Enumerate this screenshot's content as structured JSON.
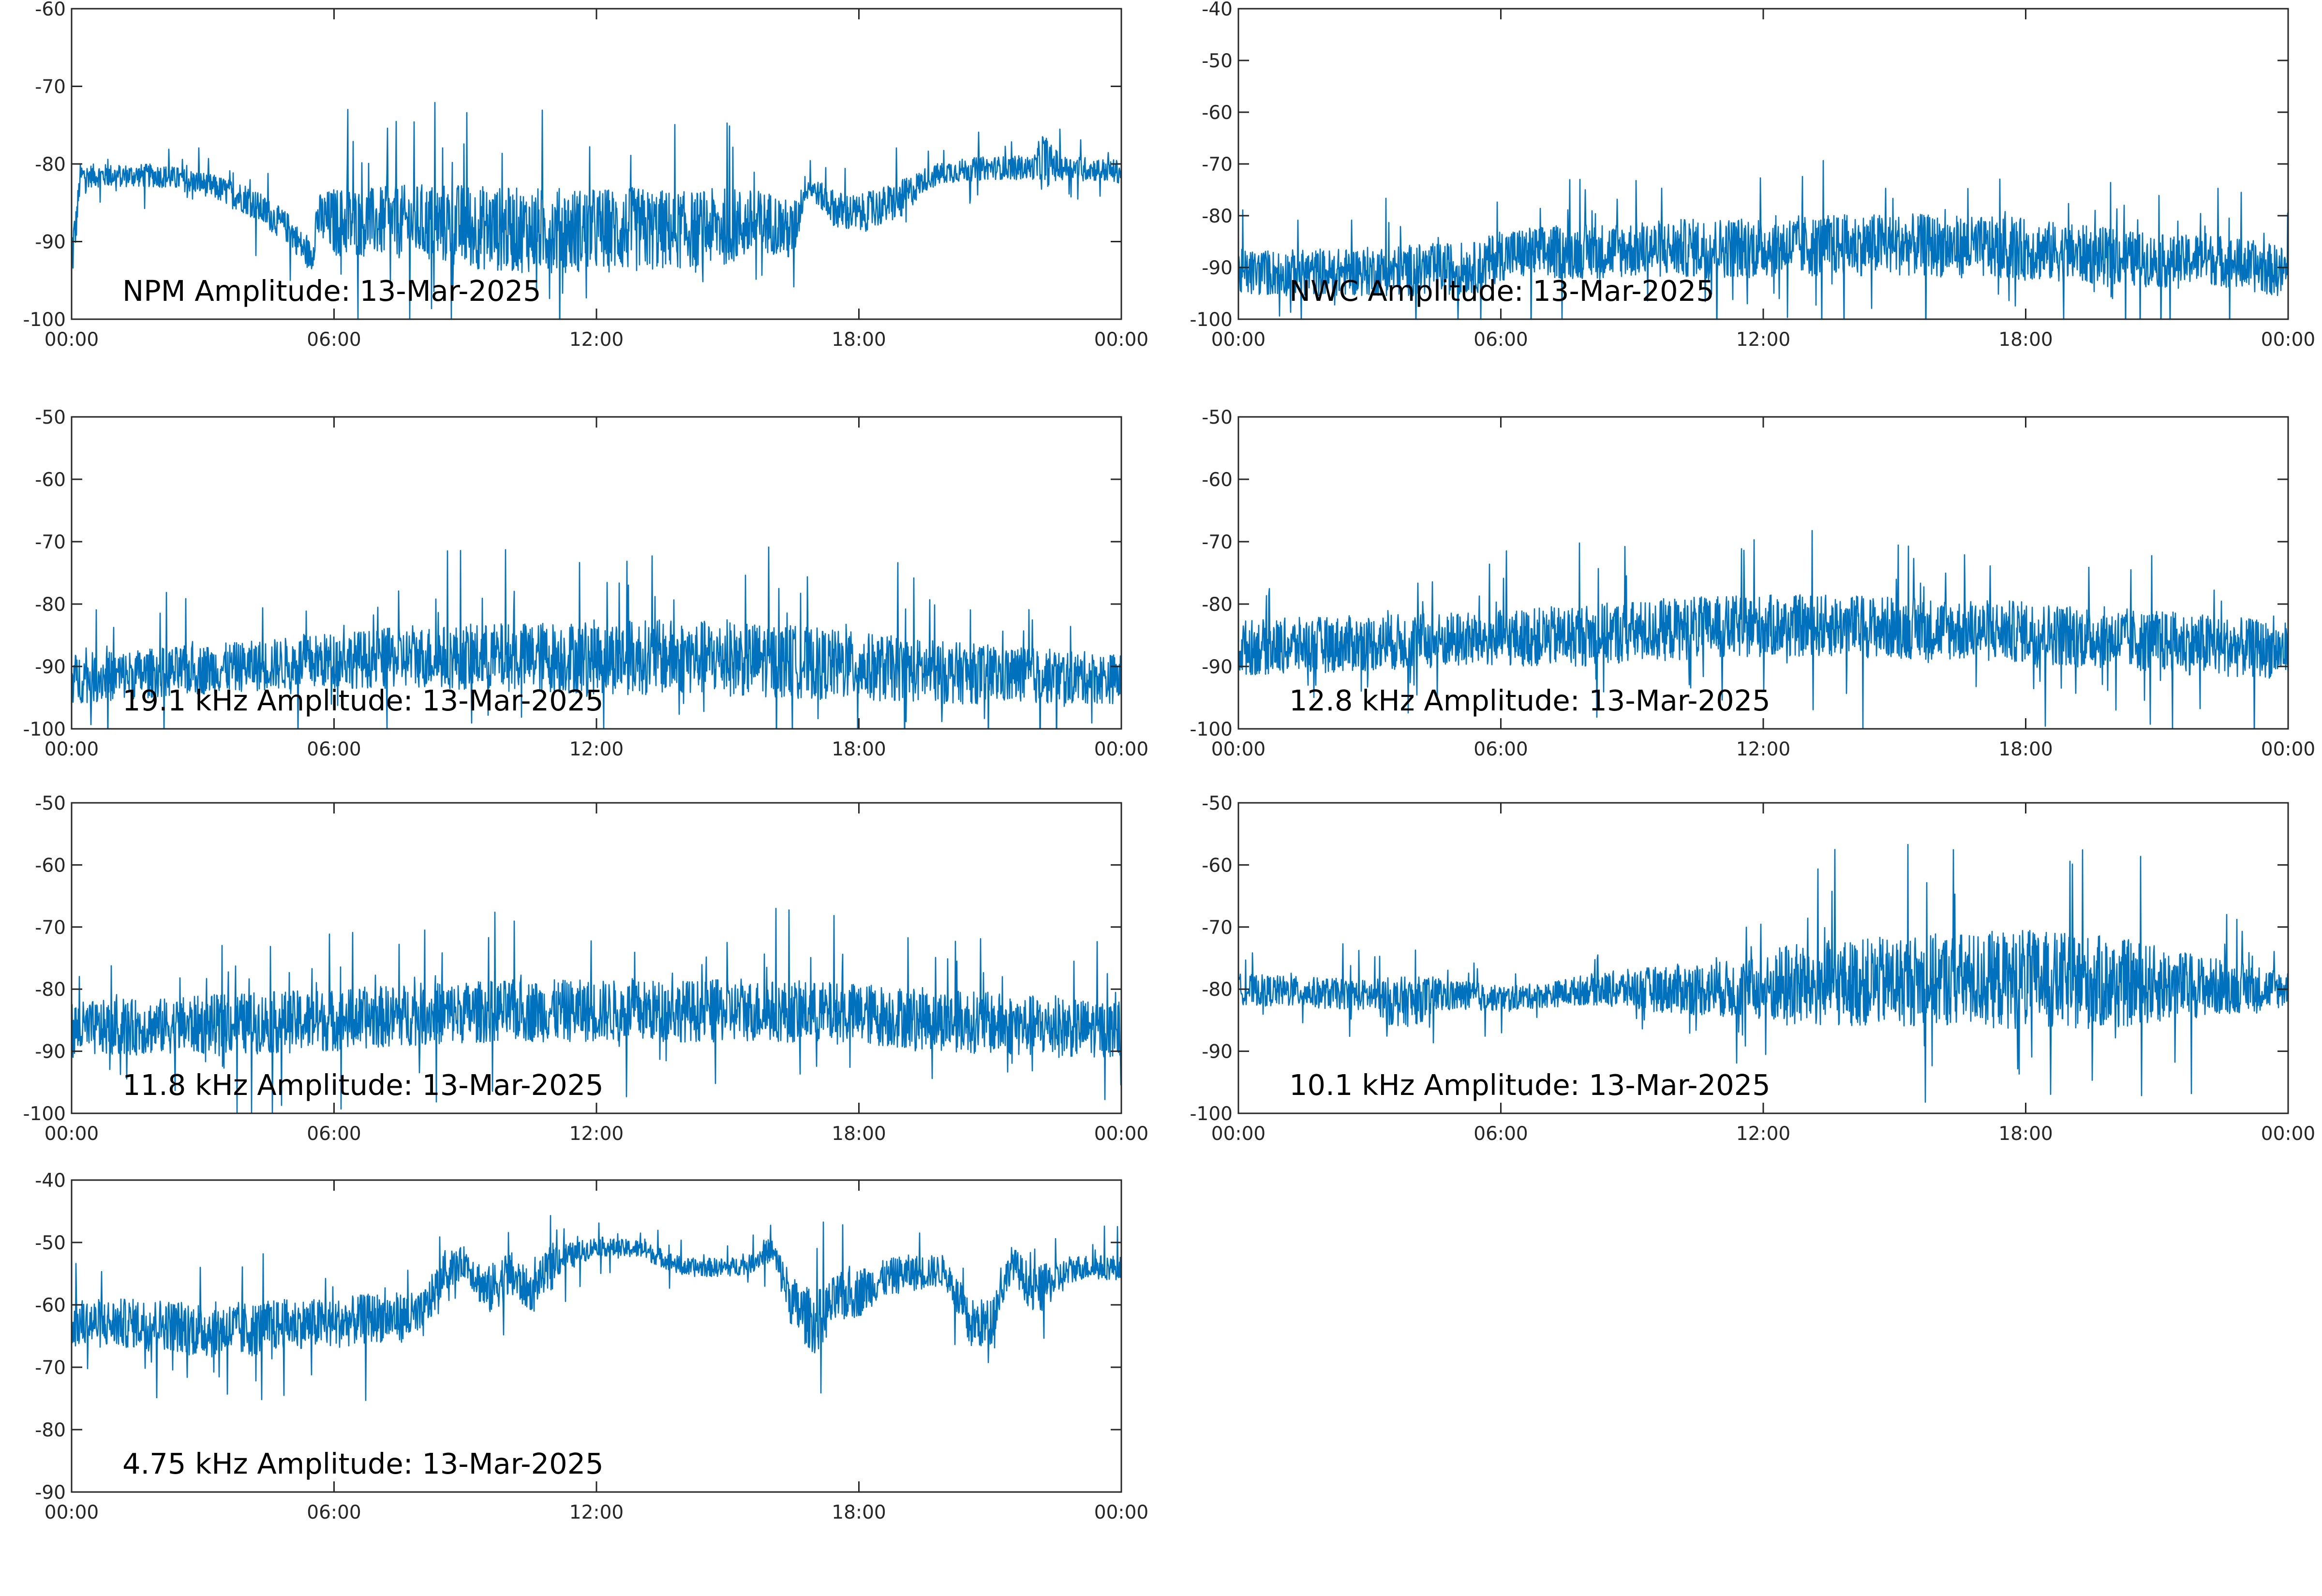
{
  "figure": {
    "line_color": "#0072BD",
    "axis_color": "#262626",
    "background": "#ffffff"
  },
  "chart_data": [
    {
      "type": "line",
      "annotation": "NPM Amplitude: 13-Mar-2025",
      "xticklabels": [
        "00:00",
        "06:00",
        "12:00",
        "18:00",
        "00:00"
      ],
      "yticklabels": [
        "-60",
        "-70",
        "-80",
        "-90",
        "-100"
      ],
      "xlim": [
        0,
        24
      ],
      "ylim": [
        -100,
        -60
      ],
      "grid": false,
      "series": [
        {
          "x": [
            0,
            0.1,
            0.2,
            0.5,
            1,
            2,
            3,
            4,
            5,
            5.3,
            5.5,
            5.6,
            6,
            7,
            8,
            9,
            10,
            11,
            12,
            13,
            14,
            15,
            16,
            16.5,
            16.8,
            17,
            17.5,
            18,
            19,
            19.5,
            20,
            21,
            22,
            22.2,
            22.4,
            22.7,
            23,
            24
          ],
          "mean": [
            -92,
            -88,
            -81.5,
            -81.5,
            -81.5,
            -81.5,
            -82.5,
            -84.5,
            -88.5,
            -91,
            -92,
            -87,
            -87.5,
            -87.5,
            -87.5,
            -88,
            -88.5,
            -88.5,
            -88.5,
            -88.5,
            -88.5,
            -88,
            -87.5,
            -89,
            -82.5,
            -83.5,
            -86,
            -86.5,
            -84.5,
            -82,
            -81,
            -80.5,
            -80.5,
            -79.5,
            -80,
            -80.5,
            -80.5,
            -81
          ],
          "spread": [
            5,
            2.5,
            1.5,
            1.5,
            1.5,
            1.5,
            1.5,
            2,
            2,
            2,
            2,
            3,
            4.5,
            4.5,
            5,
            5.5,
            5.5,
            5.5,
            5.5,
            5.5,
            5,
            5,
            4,
            4,
            1.5,
            1.5,
            2.5,
            2.5,
            2.5,
            1.5,
            1.5,
            1.5,
            1.5,
            4,
            2.5,
            1.5,
            1.5,
            1.5
          ]
        }
      ]
    },
    {
      "type": "line",
      "annotation": "NWC Amplitude: 13-Mar-2025",
      "xticklabels": [
        "00:00",
        "06:00",
        "12:00",
        "18:00",
        "00:00"
      ],
      "yticklabels": [
        "-40",
        "-50",
        "-60",
        "-70",
        "-80",
        "-90",
        "-100"
      ],
      "xlim": [
        0,
        24
      ],
      "ylim": [
        -100,
        -40
      ],
      "grid": false,
      "series": [
        {
          "x": [
            0,
            2,
            4,
            5.5,
            6,
            9,
            12,
            15,
            18,
            20,
            21.5,
            22,
            23,
            24
          ],
          "mean": [
            -91,
            -91,
            -90.5,
            -90,
            -87.5,
            -86.5,
            -86,
            -85.5,
            -86.5,
            -88,
            -89,
            -88,
            -89.5,
            -91
          ],
          "spread": [
            4.5,
            4.5,
            5,
            5,
            5,
            5.5,
            6,
            6,
            6,
            5.5,
            5,
            5,
            5,
            5
          ]
        }
      ]
    },
    {
      "type": "line",
      "annotation": "19.1 kHz Amplitude: 13-Mar-2025",
      "xticklabels": [
        "00:00",
        "06:00",
        "12:00",
        "18:00",
        "00:00"
      ],
      "yticklabels": [
        "-50",
        "-60",
        "-70",
        "-80",
        "-90",
        "-100"
      ],
      "xlim": [
        0,
        24
      ],
      "ylim": [
        -100,
        -50
      ],
      "grid": false,
      "series": [
        {
          "x": [
            0,
            2,
            4,
            6,
            8,
            10,
            12,
            14,
            16,
            18,
            20,
            22,
            24
          ],
          "mean": [
            -92,
            -91,
            -90,
            -89,
            -88.5,
            -88.5,
            -88.5,
            -88.5,
            -89,
            -90,
            -91,
            -91.5,
            -92
          ],
          "spread": [
            4,
            4,
            4,
            4.5,
            5,
            5.5,
            6,
            6,
            6,
            5.5,
            5,
            4.5,
            4
          ]
        }
      ]
    },
    {
      "type": "line",
      "annotation": "12.8 kHz Amplitude: 13-Mar-2025",
      "xticklabels": [
        "00:00",
        "06:00",
        "12:00",
        "18:00",
        "00:00"
      ],
      "yticklabels": [
        "-50",
        "-60",
        "-70",
        "-80",
        "-90",
        "-100"
      ],
      "xlim": [
        0,
        24
      ],
      "ylim": [
        -100,
        -50
      ],
      "grid": false,
      "series": [
        {
          "x": [
            0,
            2,
            4,
            6,
            8,
            10,
            12,
            14,
            16,
            18,
            20,
            22,
            24
          ],
          "mean": [
            -87,
            -86.5,
            -86,
            -85.5,
            -85,
            -84,
            -83.5,
            -83.5,
            -84,
            -84.5,
            -85.5,
            -86.5,
            -87.5
          ],
          "spread": [
            4.5,
            4.5,
            4.5,
            4.5,
            5,
            5,
            5,
            5,
            5,
            5,
            5,
            5,
            4.5
          ]
        }
      ]
    },
    {
      "type": "line",
      "annotation": "11.8 kHz Amplitude: 13-Mar-2025",
      "xticklabels": [
        "00:00",
        "06:00",
        "12:00",
        "18:00",
        "00:00"
      ],
      "yticklabels": [
        "-50",
        "-60",
        "-70",
        "-80",
        "-90",
        "-100"
      ],
      "xlim": [
        0,
        24
      ],
      "ylim": [
        -100,
        -50
      ],
      "grid": false,
      "series": [
        {
          "x": [
            0,
            2,
            4,
            6,
            8,
            10,
            12,
            14,
            16,
            18,
            20,
            22,
            24
          ],
          "mean": [
            -86.5,
            -86,
            -85.5,
            -85,
            -84,
            -83.5,
            -83.5,
            -83.5,
            -83.5,
            -84,
            -85,
            -86,
            -86.5
          ],
          "spread": [
            4.5,
            4.5,
            5,
            5,
            5,
            5,
            5,
            5,
            5,
            5,
            5,
            5,
            4.5
          ]
        }
      ]
    },
    {
      "type": "line",
      "annotation": "10.1 kHz Amplitude: 13-Mar-2025",
      "xticklabels": [
        "00:00",
        "06:00",
        "12:00",
        "18:00",
        "00:00"
      ],
      "yticklabels": [
        "-50",
        "-60",
        "-70",
        "-80",
        "-90",
        "-100"
      ],
      "xlim": [
        0,
        24
      ],
      "ylim": [
        -100,
        -50
      ],
      "grid": false,
      "series": [
        {
          "x": [
            0,
            1.5,
            3,
            3.5,
            4,
            4.5,
            5,
            6,
            7,
            8,
            10,
            12,
            12.5,
            14,
            16,
            18,
            20,
            22,
            24
          ],
          "mean": [
            -80,
            -80.5,
            -81,
            -82,
            -82,
            -81,
            -81,
            -81.5,
            -81,
            -80,
            -80,
            -80,
            -79.5,
            -79,
            -78.5,
            -78.5,
            -79,
            -79.5,
            -80
          ],
          "spread": [
            2.5,
            2.5,
            2.5,
            4,
            4,
            3,
            2.5,
            2,
            2,
            2.5,
            4,
            5,
            7,
            7,
            7.5,
            8,
            7.5,
            5,
            3
          ]
        }
      ]
    },
    {
      "type": "line",
      "annotation": "4.75 kHz Amplitude: 13-Mar-2025",
      "xticklabels": [
        "00:00",
        "06:00",
        "12:00",
        "18:00",
        "00:00"
      ],
      "yticklabels": [
        "-40",
        "-50",
        "-60",
        "-70",
        "-80",
        "-90"
      ],
      "xlim": [
        0,
        24
      ],
      "ylim": [
        -90,
        -40
      ],
      "grid": false,
      "series": [
        {
          "x": [
            0,
            1,
            2,
            3,
            4,
            5,
            6,
            7,
            8,
            8.5,
            9,
            9.5,
            10,
            10.5,
            11,
            11.5,
            12,
            12.5,
            13,
            14,
            15,
            15.5,
            16,
            16.5,
            17,
            17.5,
            18,
            18.5,
            19,
            20,
            20.5,
            21,
            21.5,
            22,
            23,
            24
          ],
          "mean": [
            -63,
            -63,
            -63,
            -64,
            -64,
            -63,
            -63,
            -62,
            -62,
            -55,
            -53,
            -58,
            -55,
            -58,
            -53,
            -52,
            -50.5,
            -51,
            -51,
            -54,
            -54,
            -53.5,
            -51,
            -60,
            -63,
            -59,
            -58,
            -56,
            -55,
            -54.5,
            -63,
            -63,
            -53,
            -58,
            -54,
            -54
          ],
          "spread": [
            4,
            4,
            4,
            4.5,
            4.5,
            4,
            4,
            4,
            4,
            3,
            2.5,
            4,
            4,
            3,
            3,
            2,
            1.5,
            1.5,
            1.5,
            1.5,
            1.5,
            1.5,
            2,
            4.5,
            5,
            4,
            4,
            3,
            3,
            2.5,
            4,
            4,
            2.5,
            4,
            2,
            2
          ]
        }
      ]
    }
  ]
}
